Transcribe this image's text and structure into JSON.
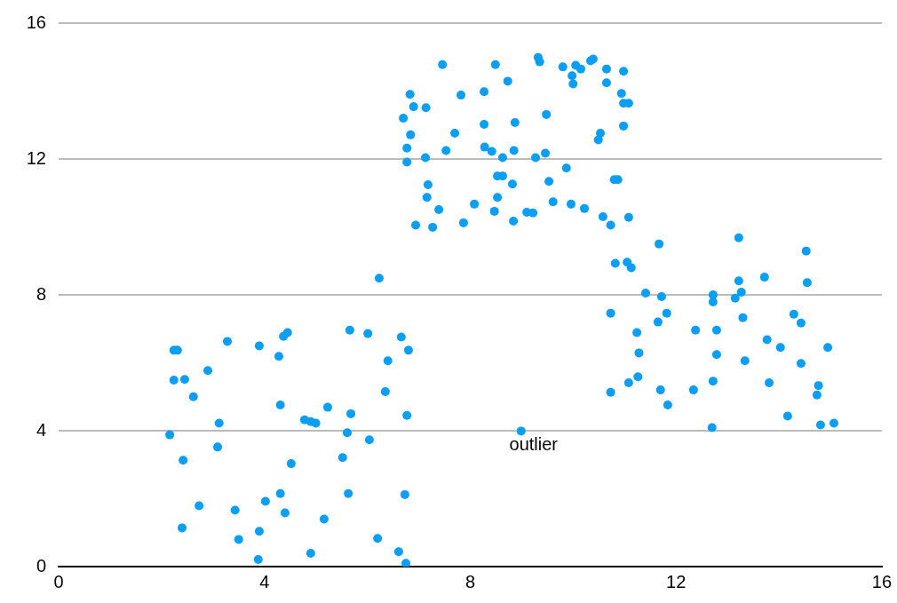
{
  "chart_data": {
    "type": "scatter",
    "x": [
      2.24,
      2.31,
      2.24,
      2.45,
      2.62,
      2.9,
      3.28,
      3.12,
      3.09,
      2.16,
      2.42,
      2.73,
      2.4,
      3.43,
      3.5,
      3.9,
      3.9,
      3.88,
      4.02,
      4.31,
      4.4,
      4.28,
      4.37,
      4.45,
      4.31,
      4.52,
      4.78,
      4.9,
      5.0,
      4.9,
      5.16,
      5.23,
      5.52,
      5.61,
      5.66,
      5.68,
      5.63,
      6.01,
      6.04,
      6.23,
      6.2,
      6.35,
      6.4,
      6.61,
      6.66,
      6.8,
      6.77,
      6.73,
      6.75,
      8.99,
      7.46,
      6.7,
      6.83,
      6.9,
      7.14,
      6.84,
      6.77,
      6.77,
      7.13,
      7.18,
      7.16,
      7.39,
      6.94,
      7.27,
      7.53,
      7.82,
      7.7,
      8.27,
      8.27,
      8.49,
      8.73,
      8.87,
      8.28,
      8.42,
      8.63,
      8.85,
      8.53,
      8.63,
      8.82,
      8.53,
      8.47,
      7.87,
      8.08,
      8.84,
      9.1,
      9.22,
      9.32,
      9.35,
      9.27,
      9.46,
      9.48,
      9.53,
      9.61,
      9.8,
      9.98,
      10.0,
      10.05,
      10.15,
      10.34,
      10.39,
      9.87,
      9.96,
      10.22,
      10.65,
      10.65,
      10.98,
      10.94,
      10.98,
      11.08,
      10.98,
      10.53,
      10.49,
      10.58,
      10.73,
      11.08,
      10.8,
      10.87,
      10.82,
      11.05,
      11.13,
      11.67,
      11.41,
      11.72,
      10.73,
      11.82,
      11.65,
      11.24,
      11.28,
      11.26,
      11.08,
      10.73,
      11.7,
      11.84,
      12.38,
      12.34,
      12.72,
      12.72,
      12.79,
      12.79,
      12.72,
      12.7,
      13.22,
      13.22,
      13.15,
      13.27,
      13.3,
      13.34,
      13.72,
      13.77,
      13.81,
      14.03,
      14.17,
      14.29,
      14.43,
      14.43,
      14.53,
      14.55,
      14.77,
      14.74,
      14.81,
      14.95,
      15.07
    ],
    "series": [
      {
        "color": "#0a9ff5",
        "values": [
          6.37,
          6.37,
          5.49,
          5.51,
          5.0,
          5.77,
          6.63,
          4.22,
          3.52,
          3.88,
          3.13,
          1.79,
          1.14,
          1.66,
          0.8,
          6.5,
          1.04,
          0.21,
          1.92,
          2.15,
          1.58,
          6.19,
          6.78,
          6.89,
          4.76,
          3.03,
          4.32,
          4.27,
          4.22,
          0.39,
          1.4,
          4.69,
          3.21,
          3.94,
          6.96,
          4.5,
          2.15,
          6.86,
          3.73,
          8.49,
          0.83,
          5.15,
          6.06,
          0.44,
          6.76,
          6.37,
          4.45,
          2.12,
          0.1,
          3.99,
          14.78,
          13.2,
          13.9,
          13.54,
          13.51,
          12.71,
          12.32,
          11.91,
          12.04,
          11.24,
          10.87,
          10.51,
          10.05,
          9.99,
          12.25,
          13.88,
          12.76,
          13.98,
          13.02,
          14.78,
          14.29,
          13.07,
          12.35,
          12.22,
          12.04,
          12.25,
          11.5,
          11.5,
          11.26,
          10.87,
          10.46,
          10.12,
          10.67,
          10.17,
          10.43,
          10.41,
          14.99,
          14.86,
          12.04,
          12.17,
          13.31,
          11.34,
          10.74,
          14.71,
          14.45,
          14.21,
          14.76,
          14.65,
          14.89,
          14.94,
          11.73,
          10.67,
          10.54,
          14.65,
          14.24,
          14.58,
          13.93,
          13.64,
          13.64,
          12.97,
          12.76,
          12.56,
          10.3,
          10.05,
          10.28,
          11.39,
          11.39,
          8.93,
          8.96,
          8.8,
          9.5,
          8.05,
          7.95,
          7.46,
          7.46,
          7.2,
          6.89,
          6.29,
          5.59,
          5.41,
          5.13,
          5.2,
          4.76,
          6.96,
          5.2,
          8.0,
          7.79,
          6.96,
          6.24,
          5.46,
          4.09,
          9.68,
          8.41,
          7.9,
          8.08,
          7.33,
          6.06,
          8.52,
          6.68,
          5.41,
          6.45,
          4.43,
          7.43,
          7.17,
          5.98,
          9.29,
          8.36,
          5.33,
          5.05,
          4.17,
          6.45,
          4.22
        ]
      }
    ],
    "xlim": [
      0,
      16
    ],
    "ylim": [
      0,
      16
    ],
    "xticks": [
      0,
      4,
      8,
      12,
      16
    ],
    "yticks": [
      0,
      4,
      8,
      12,
      16
    ],
    "grid": "y",
    "marker": "circle",
    "annotations": [
      {
        "text": "outlier",
        "x": 8.99,
        "y": 3.99
      }
    ]
  }
}
